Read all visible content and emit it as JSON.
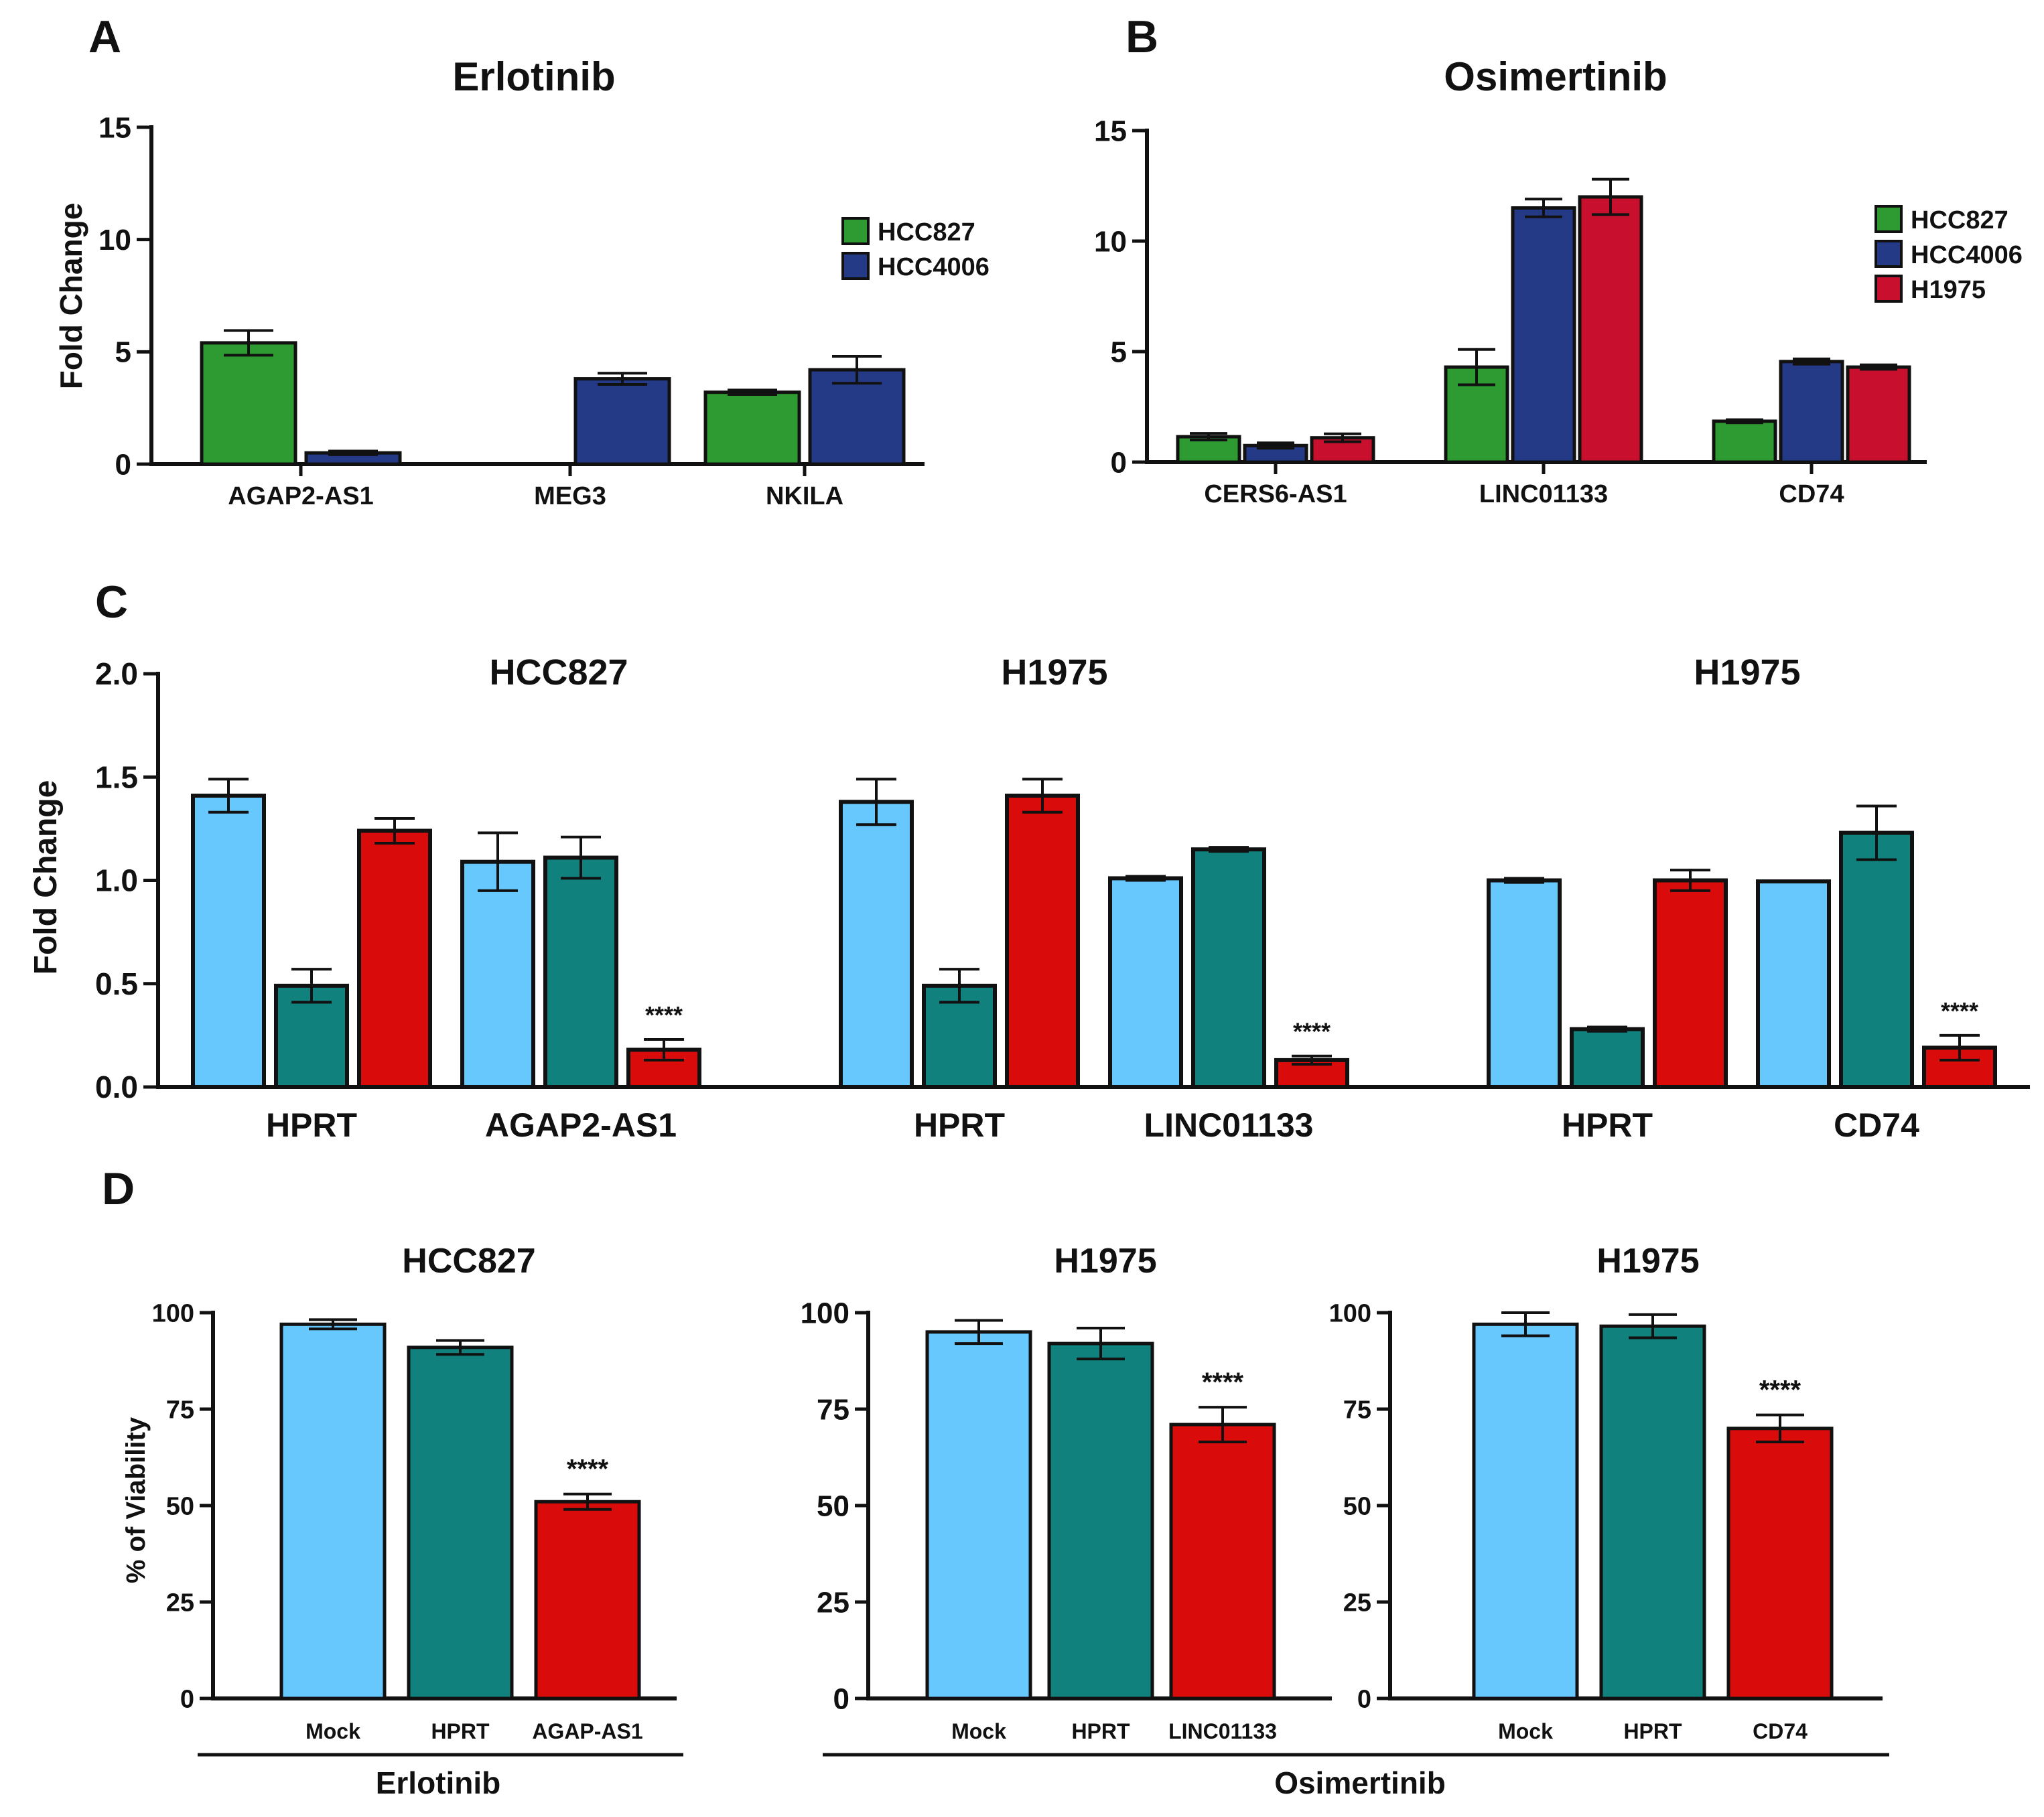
{
  "colors": {
    "green": "#2e9a32",
    "blue": "#253a86",
    "red_dark": "#c8102e",
    "light_blue": "#66c8fd",
    "teal": "#10817c",
    "red": "#d90b0b"
  },
  "chart_data": [
    {
      "panel": "A",
      "type": "bar",
      "title": "Erlotinib",
      "ylabel": "Fold Change",
      "xlabel": "",
      "ylim": [
        0,
        15
      ],
      "yticks": [
        "0",
        "5",
        "10",
        "15"
      ],
      "legend_position": "right",
      "categories": [
        "AGAP2-AS1",
        "MEG3",
        "NKILA"
      ],
      "series": [
        {
          "name": "HCC827",
          "color": "green",
          "values": [
            5.4,
            null,
            3.2
          ],
          "errors": [
            0.55,
            null,
            0.1
          ]
        },
        {
          "name": "HCC4006",
          "color": "blue",
          "values": [
            0.5,
            3.8,
            4.2
          ],
          "errors": [
            0.08,
            0.25,
            0.6
          ]
        }
      ]
    },
    {
      "panel": "B",
      "type": "bar",
      "title": "Osimertinib",
      "ylabel": "",
      "xlabel": "",
      "ylim": [
        0,
        15
      ],
      "yticks": [
        "0",
        "5",
        "10",
        "15"
      ],
      "legend_position": "right",
      "categories": [
        "CERS6-AS1",
        "LINC01133",
        "CD74"
      ],
      "series": [
        {
          "name": "HCC827",
          "color": "green",
          "values": [
            1.15,
            4.3,
            1.85
          ],
          "errors": [
            0.15,
            0.8,
            0.07
          ]
        },
        {
          "name": "HCC4006",
          "color": "blue",
          "values": [
            0.75,
            11.5,
            4.55
          ],
          "errors": [
            0.12,
            0.4,
            0.12
          ]
        },
        {
          "name": "H1975",
          "color": "red_dark",
          "values": [
            1.1,
            12.0,
            4.3
          ],
          "errors": [
            0.18,
            0.8,
            0.1
          ]
        }
      ]
    },
    {
      "panel": "C",
      "type": "bar",
      "ylabel": "Fold Change",
      "xlabel": "",
      "ylim": [
        0,
        2.0
      ],
      "yticks": [
        "0.0",
        "0.5",
        "1.0",
        "1.5",
        "2.0"
      ],
      "groups": [
        {
          "title": "HCC827",
          "categories": [
            "HPRT",
            "AGAP2-AS1"
          ],
          "bars": [
            {
              "value": 1.41,
              "error": 0.08,
              "color": "light_blue"
            },
            {
              "value": 0.49,
              "error": 0.08,
              "color": "teal"
            },
            {
              "value": 1.24,
              "error": 0.06,
              "color": "red"
            },
            {
              "value": 1.09,
              "error": 0.14,
              "color": "light_blue"
            },
            {
              "value": 1.11,
              "error": 0.1,
              "color": "teal"
            },
            {
              "value": 0.18,
              "error": 0.05,
              "color": "red",
              "label": "****"
            }
          ]
        },
        {
          "title": "H1975",
          "categories": [
            "HPRT",
            "LINC01133"
          ],
          "bars": [
            {
              "value": 1.38,
              "error": 0.11,
              "color": "light_blue"
            },
            {
              "value": 0.49,
              "error": 0.08,
              "color": "teal"
            },
            {
              "value": 1.41,
              "error": 0.08,
              "color": "red"
            },
            {
              "value": 1.01,
              "error": 0.01,
              "color": "light_blue"
            },
            {
              "value": 1.15,
              "error": 0.01,
              "color": "teal"
            },
            {
              "value": 0.13,
              "error": 0.02,
              "color": "red",
              "label": "****"
            }
          ]
        },
        {
          "title": "H1975",
          "categories": [
            "HPRT",
            "CD74"
          ],
          "bars": [
            {
              "value": 1.0,
              "error": 0.01,
              "color": "light_blue"
            },
            {
              "value": 0.28,
              "error": 0.01,
              "color": "teal"
            },
            {
              "value": 1.0,
              "error": 0.05,
              "color": "red"
            },
            {
              "value": 0.995,
              "error": 0.0,
              "color": "light_blue"
            },
            {
              "value": 1.23,
              "error": 0.13,
              "color": "teal"
            },
            {
              "value": 0.19,
              "error": 0.06,
              "color": "red",
              "label": "****"
            }
          ]
        }
      ]
    },
    {
      "panel": "D",
      "type": "bar",
      "ylabel": "% of Viability",
      "xlabel": "",
      "ylim": [
        0,
        100
      ],
      "yticks": [
        "0",
        "25",
        "50",
        "75",
        "100"
      ],
      "treatment_labels": [
        "Erlotinib",
        "Osimertinib"
      ],
      "subplots": [
        {
          "title": "HCC827",
          "treatment": "Erlotinib",
          "categories": [
            "Mock",
            "HPRT",
            "AGAP-AS1"
          ],
          "values": [
            97,
            91,
            51
          ],
          "errors": [
            1.2,
            1.8,
            2.0
          ],
          "colors": [
            "light_blue",
            "teal",
            "red"
          ],
          "labels": [
            "",
            "",
            "****"
          ]
        },
        {
          "title": "H1975",
          "treatment": "Osimertinib",
          "categories": [
            "Mock",
            "HPRT",
            "LINC01133"
          ],
          "values": [
            95,
            92,
            71
          ],
          "errors": [
            3.0,
            4.0,
            4.5
          ],
          "colors": [
            "light_blue",
            "teal",
            "red"
          ],
          "labels": [
            "",
            "",
            "****"
          ]
        },
        {
          "title": "H1975",
          "treatment": "Osimertinib",
          "categories": [
            "Mock",
            "HPRT",
            "CD74"
          ],
          "values": [
            97,
            96.5,
            70
          ],
          "errors": [
            3.0,
            3.0,
            3.5
          ],
          "colors": [
            "light_blue",
            "teal",
            "red"
          ],
          "labels": [
            "",
            "",
            "****"
          ]
        }
      ]
    }
  ]
}
